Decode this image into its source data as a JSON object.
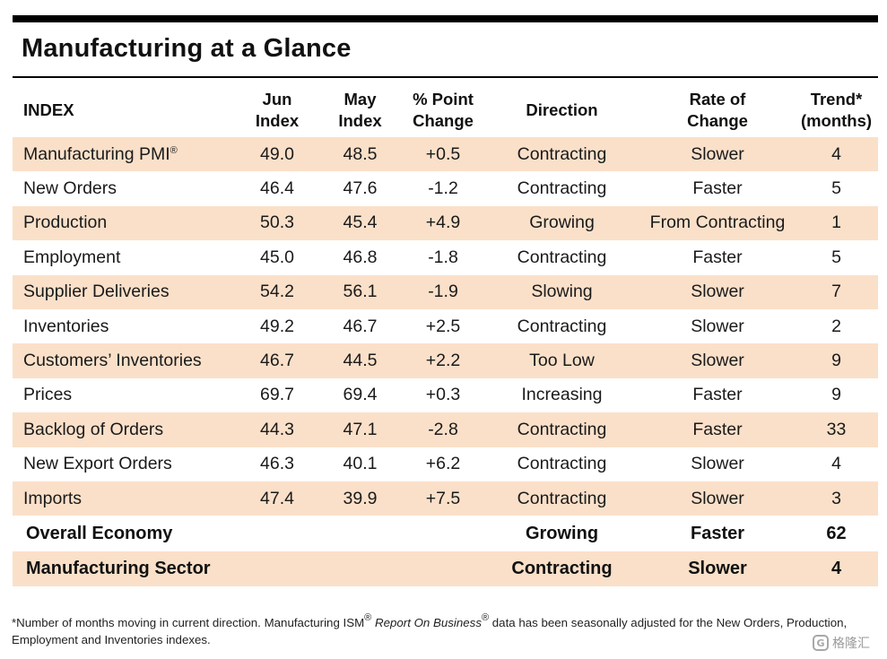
{
  "title": "Manufacturing at a Glance",
  "headers": {
    "index": "INDEX",
    "jun_line1": "Jun",
    "jun_line2": "Index",
    "may_line1": "May",
    "may_line2": "Index",
    "pct_line1": "% Point",
    "pct_line2": "Change",
    "direction": "Direction",
    "rate_line1": "Rate of",
    "rate_line2": "Change",
    "trend_line1": "Trend*",
    "trend_line2": "(months)"
  },
  "rows": [
    {
      "name": "Manufacturing PMI",
      "name_mark": "®",
      "jun": "49.0",
      "may": "48.5",
      "change": "+0.5",
      "direction": "Contracting",
      "rate": "Slower",
      "trend": "4"
    },
    {
      "name": "New Orders",
      "jun": "46.4",
      "may": "47.6",
      "change": "-1.2",
      "direction": "Contracting",
      "rate": "Faster",
      "trend": "5"
    },
    {
      "name": "Production",
      "jun": "50.3",
      "may": "45.4",
      "change": "+4.9",
      "direction": "Growing",
      "rate": "From Contracting",
      "trend": "1"
    },
    {
      "name": "Employment",
      "jun": "45.0",
      "may": "46.8",
      "change": "-1.8",
      "direction": "Contracting",
      "rate": "Faster",
      "trend": "5"
    },
    {
      "name": "Supplier Deliveries",
      "jun": "54.2",
      "may": "56.1",
      "change": "-1.9",
      "direction": "Slowing",
      "rate": "Slower",
      "trend": "7"
    },
    {
      "name": "Inventories",
      "jun": "49.2",
      "may": "46.7",
      "change": "+2.5",
      "direction": "Contracting",
      "rate": "Slower",
      "trend": "2"
    },
    {
      "name": "Customers’ Inventories",
      "jun": "46.7",
      "may": "44.5",
      "change": "+2.2",
      "direction": "Too Low",
      "rate": "Slower",
      "trend": "9"
    },
    {
      "name": "Prices",
      "jun": "69.7",
      "may": "69.4",
      "change": "+0.3",
      "direction": "Increasing",
      "rate": "Faster",
      "trend": "9"
    },
    {
      "name": "Backlog of Orders",
      "jun": "44.3",
      "may": "47.1",
      "change": "-2.8",
      "direction": "Contracting",
      "rate": "Faster",
      "trend": "33"
    },
    {
      "name": "New Export Orders",
      "jun": "46.3",
      "may": "40.1",
      "change": "+6.2",
      "direction": "Contracting",
      "rate": "Slower",
      "trend": "4"
    },
    {
      "name": "Imports",
      "jun": "47.4",
      "may": "39.9",
      "change": "+7.5",
      "direction": "Contracting",
      "rate": "Slower",
      "trend": "3"
    }
  ],
  "summary": [
    {
      "name": "Overall Economy",
      "direction": "Growing",
      "rate": "Faster",
      "trend": "62"
    },
    {
      "name": "Manufacturing Sector",
      "direction": "Contracting",
      "rate": "Slower",
      "trend": "4"
    }
  ],
  "footnote": {
    "part1": "*Number of months moving in current direction. Manufacturing ISM",
    "mark1": "®",
    "italic": "Report On Business",
    "mark2": "®",
    "part2": " data has been seasonally adjusted for the New Orders, Production, Employment and Inventories indexes."
  },
  "watermark": {
    "symbol": "G",
    "text": "格隆汇"
  },
  "colors": {
    "shaded_row": "#fae0c9",
    "rule": "#000000"
  }
}
